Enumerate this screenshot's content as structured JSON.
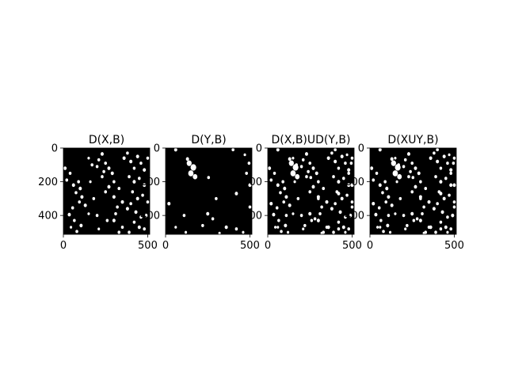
{
  "chart_data": [
    {
      "type": "heatmap",
      "title": "D(X,B)",
      "xlabel": "",
      "ylabel": "",
      "xlim": [
        0,
        512
      ],
      "ylim": [
        512,
        0
      ],
      "xticks": [
        0,
        500
      ],
      "yticks": [
        0,
        200,
        400
      ],
      "colormap": "gray",
      "grid": false,
      "blobs": [
        [
          10,
          120,
          9
        ],
        [
          40,
          150,
          8
        ],
        [
          20,
          190,
          8
        ],
        [
          60,
          220,
          9
        ],
        [
          90,
          200,
          8
        ],
        [
          100,
          240,
          9
        ],
        [
          75,
          265,
          8
        ],
        [
          110,
          290,
          9
        ],
        [
          95,
          320,
          8
        ],
        [
          130,
          340,
          9
        ],
        [
          55,
          355,
          8
        ],
        [
          35,
          395,
          9
        ],
        [
          65,
          430,
          8
        ],
        [
          105,
          460,
          9
        ],
        [
          80,
          495,
          8
        ],
        [
          45,
          470,
          7
        ],
        [
          230,
          35,
          9
        ],
        [
          210,
          70,
          8
        ],
        [
          250,
          90,
          8
        ],
        [
          200,
          110,
          8
        ],
        [
          270,
          120,
          9
        ],
        [
          240,
          140,
          8
        ],
        [
          290,
          150,
          9
        ],
        [
          230,
          170,
          8
        ],
        [
          300,
          200,
          8
        ],
        [
          270,
          230,
          9
        ],
        [
          250,
          260,
          8
        ],
        [
          300,
          290,
          9
        ],
        [
          330,
          240,
          8
        ],
        [
          350,
          320,
          9
        ],
        [
          320,
          350,
          8
        ],
        [
          380,
          360,
          9
        ],
        [
          310,
          390,
          8
        ],
        [
          300,
          430,
          9
        ],
        [
          350,
          470,
          8
        ],
        [
          330,
          500,
          8
        ],
        [
          260,
          430,
          8
        ],
        [
          210,
          480,
          7
        ],
        [
          360,
          60,
          9
        ],
        [
          380,
          30,
          8
        ],
        [
          400,
          80,
          9
        ],
        [
          420,
          120,
          8
        ],
        [
          440,
          50,
          9
        ],
        [
          460,
          90,
          8
        ],
        [
          480,
          130,
          9
        ],
        [
          500,
          60,
          8
        ],
        [
          390,
          170,
          8
        ],
        [
          420,
          200,
          9
        ],
        [
          450,
          180,
          8
        ],
        [
          480,
          220,
          9
        ],
        [
          410,
          260,
          8
        ],
        [
          440,
          300,
          9
        ],
        [
          470,
          280,
          8
        ],
        [
          500,
          320,
          8
        ],
        [
          400,
          330,
          8
        ],
        [
          430,
          380,
          9
        ],
        [
          460,
          410,
          8
        ],
        [
          490,
          400,
          9
        ],
        [
          420,
          440,
          8
        ],
        [
          450,
          470,
          9
        ],
        [
          390,
          500,
          8
        ],
        [
          480,
          480,
          8
        ],
        [
          150,
          60,
          7
        ],
        [
          170,
          100,
          8
        ],
        [
          160,
          200,
          7
        ],
        [
          180,
          300,
          8
        ],
        [
          150,
          390,
          7
        ],
        [
          200,
          400,
          8
        ]
      ]
    },
    {
      "type": "heatmap",
      "title": "D(Y,B)",
      "xlabel": "",
      "ylabel": "",
      "xlim": [
        0,
        512
      ],
      "ylim": [
        512,
        0
      ],
      "xticks": [
        0,
        500
      ],
      "yticks": [
        0,
        200,
        400
      ],
      "colormap": "gray",
      "grid": false,
      "blobs": [
        [
          140,
          90,
          14
        ],
        [
          165,
          115,
          16
        ],
        [
          150,
          150,
          15
        ],
        [
          175,
          170,
          13
        ],
        [
          130,
          65,
          9
        ],
        [
          60,
          10,
          9
        ],
        [
          400,
          10,
          8
        ],
        [
          470,
          40,
          7
        ],
        [
          495,
          90,
          8
        ],
        [
          480,
          150,
          8
        ],
        [
          500,
          220,
          9
        ],
        [
          255,
          175,
          8
        ],
        [
          420,
          270,
          9
        ],
        [
          300,
          300,
          8
        ],
        [
          20,
          330,
          9
        ],
        [
          110,
          400,
          8
        ],
        [
          250,
          390,
          9
        ],
        [
          280,
          420,
          8
        ],
        [
          220,
          460,
          8
        ],
        [
          360,
          470,
          9
        ],
        [
          420,
          480,
          8
        ],
        [
          460,
          500,
          7
        ],
        [
          120,
          500,
          7
        ],
        [
          500,
          350,
          8
        ],
        [
          60,
          470,
          7
        ],
        [
          320,
          505,
          7
        ]
      ]
    },
    {
      "type": "heatmap",
      "title": "D(X,B)UD(Y,B)",
      "xlabel": "",
      "ylabel": "",
      "xlim": [
        0,
        512
      ],
      "ylim": [
        512,
        0
      ],
      "xticks": [
        0,
        500
      ],
      "yticks": [
        0,
        200,
        400
      ],
      "colormap": "gray",
      "grid": false,
      "union_of": [
        0,
        1
      ]
    },
    {
      "type": "heatmap",
      "title": "D(XUY,B)",
      "xlabel": "",
      "ylabel": "",
      "xlim": [
        0,
        512
      ],
      "ylim": [
        512,
        0
      ],
      "xticks": [
        0,
        500
      ],
      "yticks": [
        0,
        200,
        400
      ],
      "colormap": "gray",
      "grid": false,
      "union_of": [
        0,
        1
      ]
    }
  ]
}
